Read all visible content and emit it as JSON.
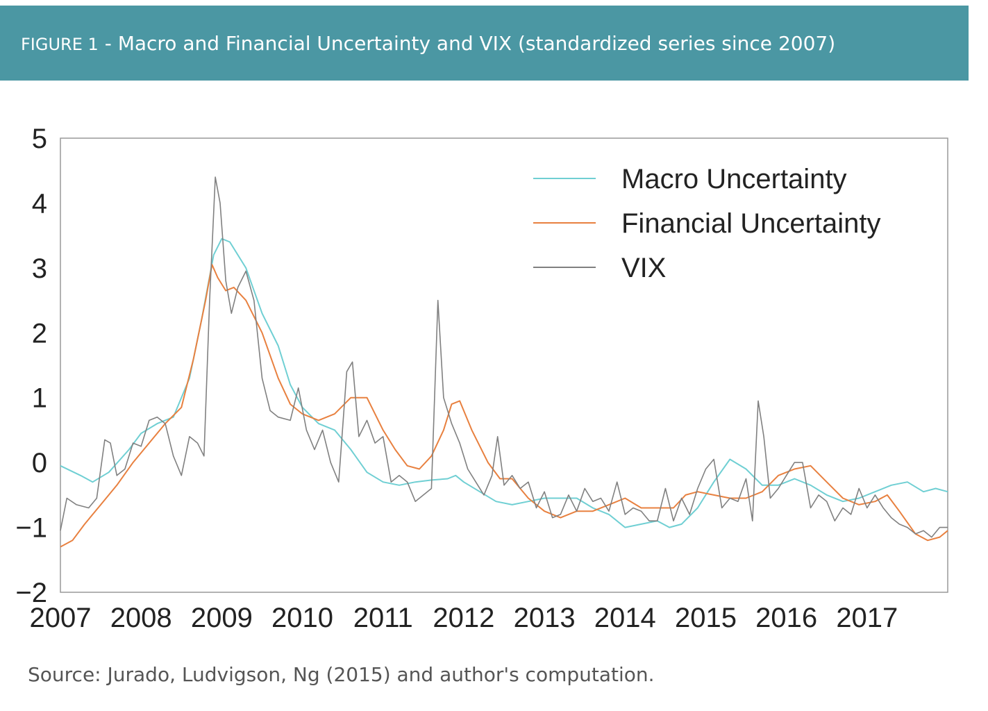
{
  "header": {
    "figure_label": "FIGURE 1",
    "separator": " - ",
    "title": "Macro and Financial Uncertainty and VIX (standardized series since 2007)"
  },
  "footer": {
    "source": "Source: Jurado, Ludvigson, Ng (2015) and author's computation."
  },
  "colors": {
    "banner": "#4b97a3",
    "macro": "#6fcfd3",
    "financial": "#e8803f",
    "vix": "#808080"
  },
  "chart_data": {
    "type": "line",
    "xlim": [
      2007,
      2018
    ],
    "ylim": [
      -2,
      5
    ],
    "x_ticks": [
      "2007",
      "2008",
      "2009",
      "2010",
      "2011",
      "2012",
      "2013",
      "2014",
      "2015",
      "2016",
      "2017"
    ],
    "y_ticks": [
      "5",
      "4",
      "3",
      "2",
      "1",
      "0",
      "−1",
      "−2"
    ],
    "y_tick_values": [
      5,
      4,
      3,
      2,
      1,
      0,
      -1,
      -2
    ],
    "grid": false,
    "legend_position": "top-right",
    "series": [
      {
        "name": "Macro Uncertainty",
        "color": "#6fcfd3",
        "points": [
          [
            2007.0,
            -0.05
          ],
          [
            2007.25,
            -0.2
          ],
          [
            2007.4,
            -0.3
          ],
          [
            2007.6,
            -0.15
          ],
          [
            2007.85,
            0.2
          ],
          [
            2008.0,
            0.45
          ],
          [
            2008.2,
            0.6
          ],
          [
            2008.4,
            0.7
          ],
          [
            2008.6,
            1.3
          ],
          [
            2008.75,
            2.2
          ],
          [
            2008.9,
            3.2
          ],
          [
            2009.0,
            3.45
          ],
          [
            2009.1,
            3.4
          ],
          [
            2009.3,
            3.0
          ],
          [
            2009.5,
            2.3
          ],
          [
            2009.7,
            1.8
          ],
          [
            2009.85,
            1.2
          ],
          [
            2010.0,
            0.85
          ],
          [
            2010.2,
            0.6
          ],
          [
            2010.4,
            0.5
          ],
          [
            2010.6,
            0.2
          ],
          [
            2010.8,
            -0.15
          ],
          [
            2011.0,
            -0.3
          ],
          [
            2011.2,
            -0.35
          ],
          [
            2011.4,
            -0.3
          ],
          [
            2011.6,
            -0.27
          ],
          [
            2011.8,
            -0.25
          ],
          [
            2011.9,
            -0.2
          ],
          [
            2012.0,
            -0.3
          ],
          [
            2012.2,
            -0.45
          ],
          [
            2012.4,
            -0.6
          ],
          [
            2012.6,
            -0.65
          ],
          [
            2012.8,
            -0.6
          ],
          [
            2013.0,
            -0.55
          ],
          [
            2013.2,
            -0.55
          ],
          [
            2013.4,
            -0.55
          ],
          [
            2013.6,
            -0.7
          ],
          [
            2013.8,
            -0.8
          ],
          [
            2014.0,
            -1.0
          ],
          [
            2014.2,
            -0.95
          ],
          [
            2014.4,
            -0.9
          ],
          [
            2014.55,
            -1.0
          ],
          [
            2014.7,
            -0.95
          ],
          [
            2014.9,
            -0.7
          ],
          [
            2015.1,
            -0.3
          ],
          [
            2015.3,
            0.05
          ],
          [
            2015.5,
            -0.1
          ],
          [
            2015.7,
            -0.35
          ],
          [
            2015.9,
            -0.35
          ],
          [
            2016.1,
            -0.25
          ],
          [
            2016.3,
            -0.35
          ],
          [
            2016.5,
            -0.5
          ],
          [
            2016.7,
            -0.6
          ],
          [
            2016.9,
            -0.55
          ],
          [
            2017.1,
            -0.45
          ],
          [
            2017.3,
            -0.35
          ],
          [
            2017.5,
            -0.3
          ],
          [
            2017.7,
            -0.45
          ],
          [
            2017.85,
            -0.4
          ],
          [
            2018.0,
            -0.45
          ]
        ]
      },
      {
        "name": "Financial Uncertainty",
        "color": "#e8803f",
        "points": [
          [
            2007.0,
            -1.3
          ],
          [
            2007.15,
            -1.2
          ],
          [
            2007.3,
            -0.95
          ],
          [
            2007.5,
            -0.65
          ],
          [
            2007.7,
            -0.35
          ],
          [
            2007.9,
            0.0
          ],
          [
            2008.1,
            0.3
          ],
          [
            2008.3,
            0.6
          ],
          [
            2008.5,
            0.85
          ],
          [
            2008.65,
            1.6
          ],
          [
            2008.8,
            2.5
          ],
          [
            2008.88,
            3.05
          ],
          [
            2008.95,
            2.85
          ],
          [
            2009.05,
            2.65
          ],
          [
            2009.15,
            2.7
          ],
          [
            2009.3,
            2.5
          ],
          [
            2009.5,
            2.0
          ],
          [
            2009.7,
            1.3
          ],
          [
            2009.85,
            0.9
          ],
          [
            2010.0,
            0.75
          ],
          [
            2010.2,
            0.65
          ],
          [
            2010.4,
            0.75
          ],
          [
            2010.6,
            1.0
          ],
          [
            2010.8,
            1.0
          ],
          [
            2011.0,
            0.5
          ],
          [
            2011.15,
            0.2
          ],
          [
            2011.3,
            -0.05
          ],
          [
            2011.45,
            -0.1
          ],
          [
            2011.6,
            0.1
          ],
          [
            2011.75,
            0.5
          ],
          [
            2011.85,
            0.9
          ],
          [
            2011.95,
            0.95
          ],
          [
            2012.1,
            0.5
          ],
          [
            2012.3,
            0.0
          ],
          [
            2012.45,
            -0.25
          ],
          [
            2012.6,
            -0.25
          ],
          [
            2012.8,
            -0.55
          ],
          [
            2013.0,
            -0.75
          ],
          [
            2013.2,
            -0.85
          ],
          [
            2013.4,
            -0.75
          ],
          [
            2013.6,
            -0.75
          ],
          [
            2013.8,
            -0.65
          ],
          [
            2014.0,
            -0.55
          ],
          [
            2014.2,
            -0.7
          ],
          [
            2014.4,
            -0.7
          ],
          [
            2014.6,
            -0.7
          ],
          [
            2014.75,
            -0.5
          ],
          [
            2014.9,
            -0.45
          ],
          [
            2015.1,
            -0.5
          ],
          [
            2015.3,
            -0.55
          ],
          [
            2015.5,
            -0.55
          ],
          [
            2015.7,
            -0.45
          ],
          [
            2015.9,
            -0.2
          ],
          [
            2016.1,
            -0.1
          ],
          [
            2016.3,
            -0.05
          ],
          [
            2016.5,
            -0.3
          ],
          [
            2016.7,
            -0.55
          ],
          [
            2016.9,
            -0.65
          ],
          [
            2017.1,
            -0.6
          ],
          [
            2017.25,
            -0.5
          ],
          [
            2017.4,
            -0.75
          ],
          [
            2017.6,
            -1.1
          ],
          [
            2017.75,
            -1.2
          ],
          [
            2017.9,
            -1.15
          ],
          [
            2018.0,
            -1.05
          ]
        ]
      },
      {
        "name": "VIX",
        "color": "#808080",
        "points": [
          [
            2007.0,
            -1.05
          ],
          [
            2007.08,
            -0.55
          ],
          [
            2007.2,
            -0.65
          ],
          [
            2007.35,
            -0.7
          ],
          [
            2007.45,
            -0.55
          ],
          [
            2007.55,
            0.35
          ],
          [
            2007.62,
            0.3
          ],
          [
            2007.7,
            -0.2
          ],
          [
            2007.8,
            -0.1
          ],
          [
            2007.9,
            0.3
          ],
          [
            2008.0,
            0.25
          ],
          [
            2008.1,
            0.65
          ],
          [
            2008.2,
            0.7
          ],
          [
            2008.3,
            0.6
          ],
          [
            2008.4,
            0.1
          ],
          [
            2008.5,
            -0.2
          ],
          [
            2008.6,
            0.4
          ],
          [
            2008.7,
            0.3
          ],
          [
            2008.78,
            0.1
          ],
          [
            2008.85,
            2.5
          ],
          [
            2008.92,
            4.4
          ],
          [
            2008.98,
            4.0
          ],
          [
            2009.05,
            2.8
          ],
          [
            2009.12,
            2.3
          ],
          [
            2009.2,
            2.7
          ],
          [
            2009.3,
            2.95
          ],
          [
            2009.4,
            2.5
          ],
          [
            2009.5,
            1.3
          ],
          [
            2009.6,
            0.8
          ],
          [
            2009.7,
            0.7
          ],
          [
            2009.85,
            0.65
          ],
          [
            2009.95,
            1.15
          ],
          [
            2010.05,
            0.5
          ],
          [
            2010.15,
            0.2
          ],
          [
            2010.25,
            0.5
          ],
          [
            2010.35,
            0.0
          ],
          [
            2010.45,
            -0.3
          ],
          [
            2010.55,
            1.4
          ],
          [
            2010.62,
            1.55
          ],
          [
            2010.7,
            0.4
          ],
          [
            2010.8,
            0.65
          ],
          [
            2010.9,
            0.3
          ],
          [
            2011.0,
            0.4
          ],
          [
            2011.1,
            -0.3
          ],
          [
            2011.2,
            -0.2
          ],
          [
            2011.3,
            -0.3
          ],
          [
            2011.4,
            -0.6
          ],
          [
            2011.5,
            -0.5
          ],
          [
            2011.6,
            -0.4
          ],
          [
            2011.68,
            2.5
          ],
          [
            2011.75,
            1.0
          ],
          [
            2011.85,
            0.6
          ],
          [
            2011.95,
            0.3
          ],
          [
            2012.05,
            -0.1
          ],
          [
            2012.15,
            -0.3
          ],
          [
            2012.25,
            -0.5
          ],
          [
            2012.35,
            -0.2
          ],
          [
            2012.42,
            0.4
          ],
          [
            2012.5,
            -0.35
          ],
          [
            2012.6,
            -0.2
          ],
          [
            2012.7,
            -0.4
          ],
          [
            2012.8,
            -0.3
          ],
          [
            2012.9,
            -0.7
          ],
          [
            2013.0,
            -0.45
          ],
          [
            2013.1,
            -0.85
          ],
          [
            2013.2,
            -0.8
          ],
          [
            2013.3,
            -0.5
          ],
          [
            2013.4,
            -0.75
          ],
          [
            2013.5,
            -0.4
          ],
          [
            2013.6,
            -0.6
          ],
          [
            2013.7,
            -0.55
          ],
          [
            2013.8,
            -0.75
          ],
          [
            2013.9,
            -0.3
          ],
          [
            2014.0,
            -0.8
          ],
          [
            2014.1,
            -0.7
          ],
          [
            2014.2,
            -0.75
          ],
          [
            2014.3,
            -0.9
          ],
          [
            2014.4,
            -0.9
          ],
          [
            2014.5,
            -0.4
          ],
          [
            2014.6,
            -0.9
          ],
          [
            2014.7,
            -0.55
          ],
          [
            2014.8,
            -0.8
          ],
          [
            2014.9,
            -0.4
          ],
          [
            2015.0,
            -0.1
          ],
          [
            2015.1,
            0.05
          ],
          [
            2015.2,
            -0.7
          ],
          [
            2015.3,
            -0.55
          ],
          [
            2015.4,
            -0.6
          ],
          [
            2015.5,
            -0.25
          ],
          [
            2015.58,
            -0.9
          ],
          [
            2015.65,
            0.95
          ],
          [
            2015.72,
            0.4
          ],
          [
            2015.8,
            -0.55
          ],
          [
            2015.9,
            -0.4
          ],
          [
            2016.0,
            -0.2
          ],
          [
            2016.1,
            0.0
          ],
          [
            2016.2,
            0.0
          ],
          [
            2016.3,
            -0.7
          ],
          [
            2016.4,
            -0.5
          ],
          [
            2016.5,
            -0.6
          ],
          [
            2016.6,
            -0.9
          ],
          [
            2016.7,
            -0.7
          ],
          [
            2016.8,
            -0.8
          ],
          [
            2016.9,
            -0.4
          ],
          [
            2017.0,
            -0.7
          ],
          [
            2017.1,
            -0.5
          ],
          [
            2017.2,
            -0.7
          ],
          [
            2017.3,
            -0.85
          ],
          [
            2017.4,
            -0.95
          ],
          [
            2017.5,
            -1.0
          ],
          [
            2017.6,
            -1.1
          ],
          [
            2017.7,
            -1.05
          ],
          [
            2017.8,
            -1.15
          ],
          [
            2017.9,
            -1.0
          ],
          [
            2018.0,
            -1.0
          ]
        ]
      }
    ]
  }
}
